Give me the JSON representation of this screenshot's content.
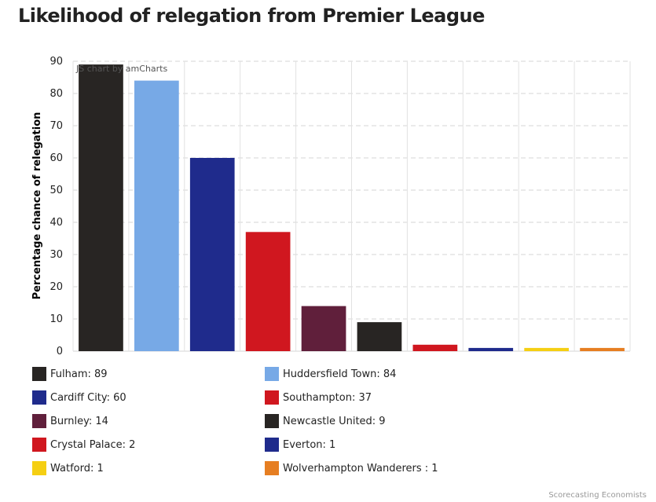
{
  "page": {
    "title": "Likelihood of relegation from Premier League",
    "credit": "JS chart by amCharts",
    "source": "Scorecasting Economists"
  },
  "chart_data": {
    "type": "bar",
    "title": "Likelihood of relegation from Premier League",
    "xlabel": "",
    "ylabel": "Percentage chance of relegation",
    "ylim": [
      0,
      90
    ],
    "yticks": [
      0,
      10,
      20,
      30,
      40,
      50,
      60,
      70,
      80,
      90
    ],
    "grid": true,
    "legend_position": "bottom",
    "categories": [
      "Fulham",
      "Huddersfield Town",
      "Cardiff City",
      "Southampton",
      "Burnley",
      "Newcastle United",
      "Crystal Palace",
      "Everton",
      "Watford",
      "Wolverhampton Wanderers "
    ],
    "values": [
      89,
      84,
      60,
      37,
      14,
      9,
      2,
      1,
      1,
      1
    ],
    "colors": [
      "#282523",
      "#77a9e6",
      "#1f2b8c",
      "#d0171f",
      "#601f3b",
      "#282523",
      "#d0171f",
      "#1f2b8c",
      "#f5cf13",
      "#e67e22"
    ],
    "legend": [
      "Fulham: 89",
      "Huddersfield Town: 84",
      "Cardiff City: 60",
      "Southampton: 37",
      "Burnley: 14",
      "Newcastle United: 9",
      "Crystal Palace: 2",
      "Everton: 1",
      "Watford: 1",
      "Wolverhampton Wanderers : 1"
    ]
  }
}
